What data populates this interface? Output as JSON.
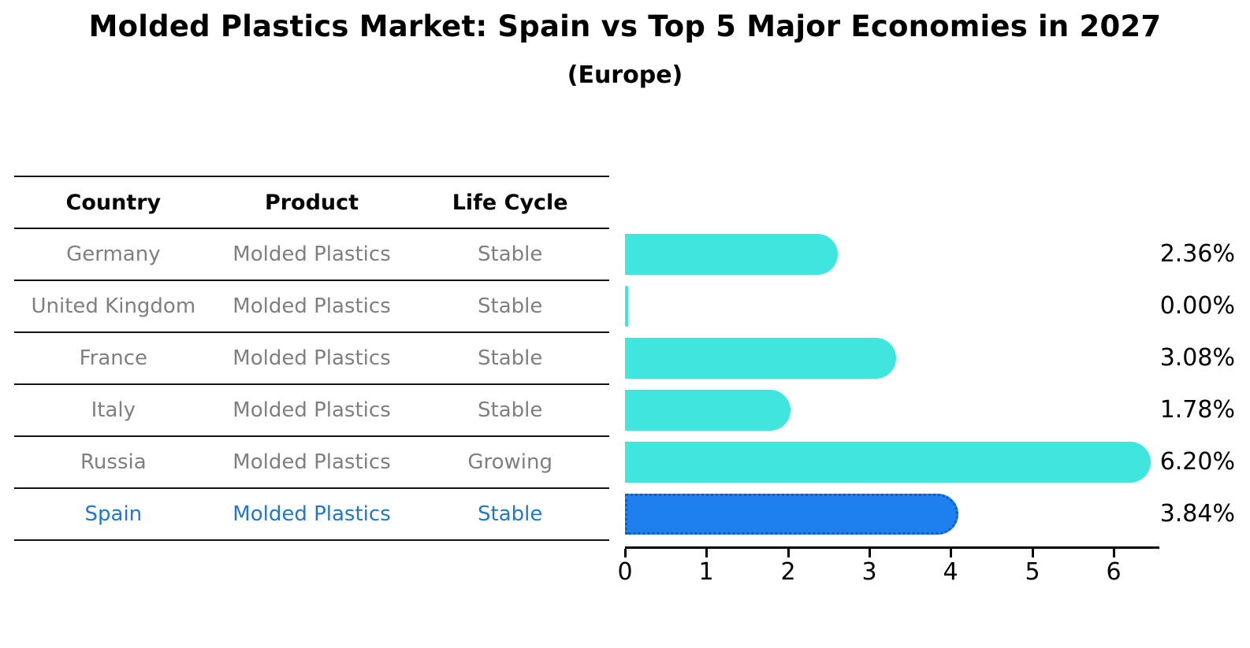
{
  "title": "Molded Plastics Market: Spain vs Top 5 Major Economies in 2027",
  "subtitle": "(Europe)",
  "table": {
    "headers": [
      "Country",
      "Product",
      "Life Cycle"
    ],
    "rows": [
      {
        "country": "Germany",
        "product": "Molded Plastics",
        "life_cycle": "Stable",
        "highlight": false
      },
      {
        "country": "United Kingdom",
        "product": "Molded Plastics",
        "life_cycle": "Stable",
        "highlight": false
      },
      {
        "country": "France",
        "product": "Molded Plastics",
        "life_cycle": "Stable",
        "highlight": false
      },
      {
        "country": "Italy",
        "product": "Molded Plastics",
        "life_cycle": "Stable",
        "highlight": false
      },
      {
        "country": "Russia",
        "product": "Molded Plastics",
        "life_cycle": "Growing",
        "highlight": false
      },
      {
        "country": "Spain",
        "product": "Molded Plastics",
        "life_cycle": "Stable",
        "highlight": true
      }
    ]
  },
  "chart_data": {
    "type": "bar",
    "orientation": "horizontal",
    "title": "Molded Plastics Market: Spain vs Top 5 Major Economies in 2027 (Europe)",
    "categories": [
      "Germany",
      "United Kingdom",
      "France",
      "Italy",
      "Russia",
      "Spain"
    ],
    "values": [
      2.36,
      0.0,
      3.08,
      1.78,
      6.2,
      3.84
    ],
    "value_labels": [
      "2.36%",
      "0.00%",
      "3.08%",
      "1.78%",
      "6.20%",
      "3.84%"
    ],
    "x_ticks": [
      0,
      1,
      2,
      3,
      4,
      5,
      6
    ],
    "xlim": [
      0,
      6.55
    ],
    "grid": false,
    "legend": false,
    "bar_color": "#40e5de",
    "highlight_index": 5,
    "highlight_color": "#1e80ee",
    "highlight_border_color": "#0e5fc4",
    "highlight_text_color": "#2277cc",
    "text_color_muted": "#7f7f7f"
  }
}
